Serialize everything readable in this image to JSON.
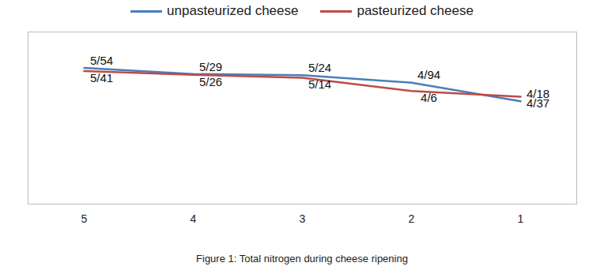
{
  "chart_data": {
    "type": "line",
    "title": "Figure 1: Total nitrogen during cheese ripening",
    "categories": [
      5,
      4,
      3,
      2,
      1
    ],
    "series": [
      {
        "name": "unpasteurized cheese",
        "color": "#4a7ebb",
        "values": [
          5.54,
          5.29,
          5.24,
          4.94,
          4.18
        ],
        "value_labels": [
          "5/54",
          "5/29",
          "5/24",
          "4/94",
          "4/18"
        ]
      },
      {
        "name": "pasteurized cheese",
        "color": "#be4b48",
        "values": [
          5.41,
          5.26,
          5.14,
          4.6,
          4.37
        ],
        "value_labels": [
          "5/41",
          "5/26",
          "5/14",
          "4/6",
          "4/37"
        ]
      }
    ],
    "ylim": [
      0,
      7
    ],
    "yticks": [],
    "grid": false,
    "legend": "top",
    "data_labels": true,
    "tick_labels": "x"
  }
}
